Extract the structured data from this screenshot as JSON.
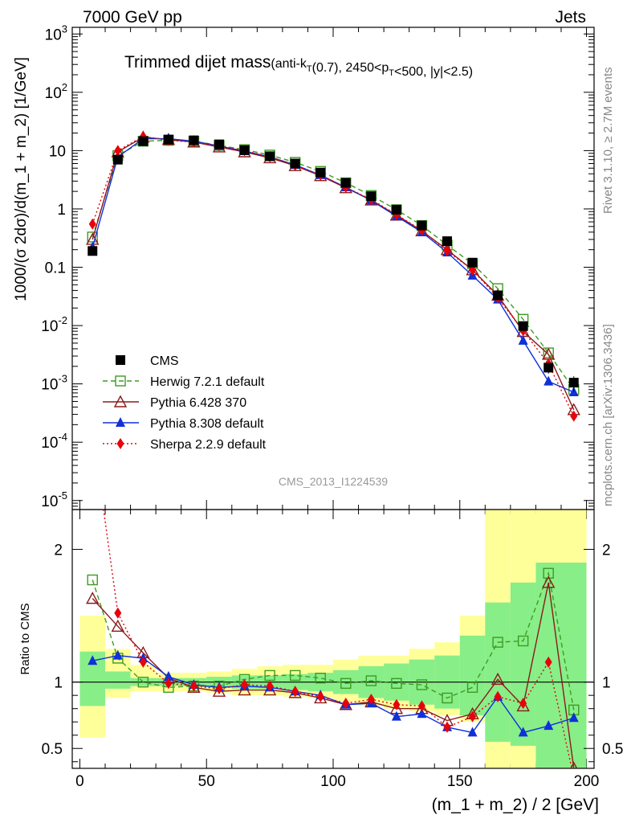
{
  "header": {
    "left": "7000 GeV pp",
    "right": "Jets"
  },
  "side_labels": {
    "upper": "Rivet 3.1.10, ≥ 2.7M events",
    "lower": "mcplots.cern.ch [arXiv:1306.3436]"
  },
  "title": {
    "main": "Trimmed dijet mass",
    "sub": "(anti-k_T(0.7), 2450<p_T<500, |y|<2.5)"
  },
  "analysis_id": "CMS_2013_I1224539",
  "axes": {
    "xlabel": "(m_1 + m_2) / 2 [GeV]",
    "ylabel_main": "1000/(σ 2dσ)/d(m_1 + m_2) [1/GeV]",
    "ylabel_ratio": "Ratio to CMS"
  },
  "chart_data": {
    "type": "line",
    "x": [
      5,
      15,
      25,
      35,
      45,
      55,
      65,
      75,
      85,
      95,
      105,
      115,
      125,
      135,
      145,
      155,
      165,
      175,
      185,
      195
    ],
    "xlim": [
      -3,
      203
    ],
    "xticks": [
      "0",
      "50",
      "100",
      "150",
      "200"
    ],
    "yscale_main": "log",
    "ylim_main": [
      7e-06,
      1300
    ],
    "yticks_main": [
      "10^-5",
      "10^-4",
      "10^-3",
      "10^-2",
      "0.1",
      "1",
      "10",
      "10^2",
      "10^3"
    ],
    "ylim_ratio": [
      0.35,
      2.3
    ],
    "yticks_ratio": [
      "0.5",
      "1",
      "2"
    ],
    "legend_position": "lower-left",
    "data": {
      "name": "CMS",
      "values": [
        0.19,
        7.0,
        14.5,
        15.5,
        15.0,
        12.8,
        10.2,
        8.0,
        6.0,
        4.2,
        2.8,
        1.65,
        0.97,
        0.52,
        0.28,
        0.12,
        0.033,
        0.0098,
        0.0019,
        0.00105
      ],
      "errors": [
        0.02,
        0.4,
        0.6,
        0.6,
        0.6,
        0.5,
        0.4,
        0.3,
        0.25,
        0.2,
        0.15,
        0.1,
        0.06,
        0.04,
        0.02,
        0.01,
        0.004,
        0.0015,
        0.0004,
        0.0003
      ],
      "band_inner": [
        [
          0.82,
          1.23
        ],
        [
          0.95,
          1.08
        ],
        [
          0.97,
          1.03
        ],
        [
          0.97,
          1.03
        ],
        [
          0.97,
          1.03
        ],
        [
          0.96,
          1.04
        ],
        [
          0.95,
          1.05
        ],
        [
          0.95,
          1.05
        ],
        [
          0.94,
          1.06
        ],
        [
          0.93,
          1.07
        ],
        [
          0.91,
          1.09
        ],
        [
          0.88,
          1.12
        ],
        [
          0.86,
          1.14
        ],
        [
          0.83,
          1.17
        ],
        [
          0.8,
          1.2
        ],
        [
          0.75,
          1.35
        ],
        [
          0.55,
          1.6
        ],
        [
          0.52,
          1.75
        ],
        [
          0.35,
          1.9
        ],
        [
          0.35,
          1.9
        ]
      ],
      "band_outer": [
        [
          0.58,
          1.5
        ],
        [
          0.88,
          1.25
        ],
        [
          0.93,
          1.13
        ],
        [
          0.93,
          1.07
        ],
        [
          0.93,
          1.07
        ],
        [
          0.92,
          1.08
        ],
        [
          0.9,
          1.1
        ],
        [
          0.9,
          1.12
        ],
        [
          0.89,
          1.13
        ],
        [
          0.88,
          1.13
        ],
        [
          0.85,
          1.17
        ],
        [
          0.82,
          1.2
        ],
        [
          0.8,
          1.2
        ],
        [
          0.78,
          1.25
        ],
        [
          0.75,
          1.3
        ],
        [
          0.7,
          1.5
        ],
        [
          0.35,
          2.3
        ],
        [
          0.35,
          2.3
        ],
        [
          0.35,
          2.3
        ],
        [
          0.35,
          2.3
        ]
      ]
    },
    "series": [
      {
        "name": "Herwig 7.2.1 default",
        "color": "#3d9b22",
        "marker": "open-square",
        "line": "dashed",
        "values": [
          0.33,
          8.2,
          14.5,
          15.0,
          14.5,
          12.3,
          10.4,
          8.4,
          6.3,
          4.4,
          2.8,
          1.7,
          0.97,
          0.52,
          0.24,
          0.115,
          0.043,
          0.0128,
          0.0034,
          0.0008
        ],
        "ratio": [
          1.77,
          1.18,
          1.0,
          0.96,
          0.97,
          0.97,
          1.02,
          1.05,
          1.05,
          1.03,
          0.99,
          1.01,
          0.99,
          0.98,
          0.88,
          0.96,
          1.3,
          1.31,
          1.82,
          0.79
        ]
      },
      {
        "name": "Pythia 6.428 370",
        "color": "#8b1a1a",
        "marker": "open-triangle",
        "line": "solid",
        "values": [
          0.3,
          9.5,
          17.0,
          15.5,
          14.0,
          11.5,
          9.5,
          7.5,
          5.5,
          3.7,
          2.3,
          1.42,
          0.78,
          0.42,
          0.2,
          0.09,
          0.033,
          0.0079,
          0.0032,
          0.00036
        ],
        "ratio": [
          1.63,
          1.42,
          1.22,
          1.03,
          0.96,
          0.93,
          0.94,
          0.94,
          0.92,
          0.88,
          0.83,
          0.85,
          0.8,
          0.8,
          0.71,
          0.76,
          1.02,
          0.82,
          1.75,
          0.35
        ]
      },
      {
        "name": "Pythia 8.308 default",
        "color": "#1030d8",
        "marker": "filled-triangle",
        "line": "solid",
        "values": [
          0.22,
          7.8,
          16.0,
          16.0,
          14.5,
          12.0,
          9.8,
          7.8,
          5.7,
          3.8,
          2.35,
          1.4,
          0.75,
          0.4,
          0.18,
          0.072,
          0.028,
          0.0055,
          0.0011,
          0.00072
        ],
        "ratio": [
          1.16,
          1.2,
          1.18,
          1.04,
          0.98,
          0.96,
          0.97,
          0.96,
          0.93,
          0.9,
          0.83,
          0.84,
          0.74,
          0.76,
          0.66,
          0.62,
          0.89,
          0.62,
          0.67,
          0.73
        ]
      },
      {
        "name": "Sherpa 2.2.9 default",
        "color": "#e8000a",
        "marker": "filled-diamond",
        "line": "dotted",
        "values": [
          0.55,
          10.0,
          17.5,
          15.0,
          14.0,
          12.0,
          10.0,
          7.8,
          5.6,
          3.8,
          2.35,
          1.45,
          0.8,
          0.43,
          0.19,
          0.09,
          0.03,
          0.0082,
          0.0022,
          0.00028
        ],
        "ratio": [
          2.9,
          1.52,
          1.15,
          0.99,
          0.97,
          0.95,
          0.98,
          0.97,
          0.93,
          0.89,
          0.84,
          0.87,
          0.83,
          0.82,
          0.66,
          0.74,
          0.89,
          0.84,
          1.15,
          0.28
        ]
      }
    ]
  }
}
